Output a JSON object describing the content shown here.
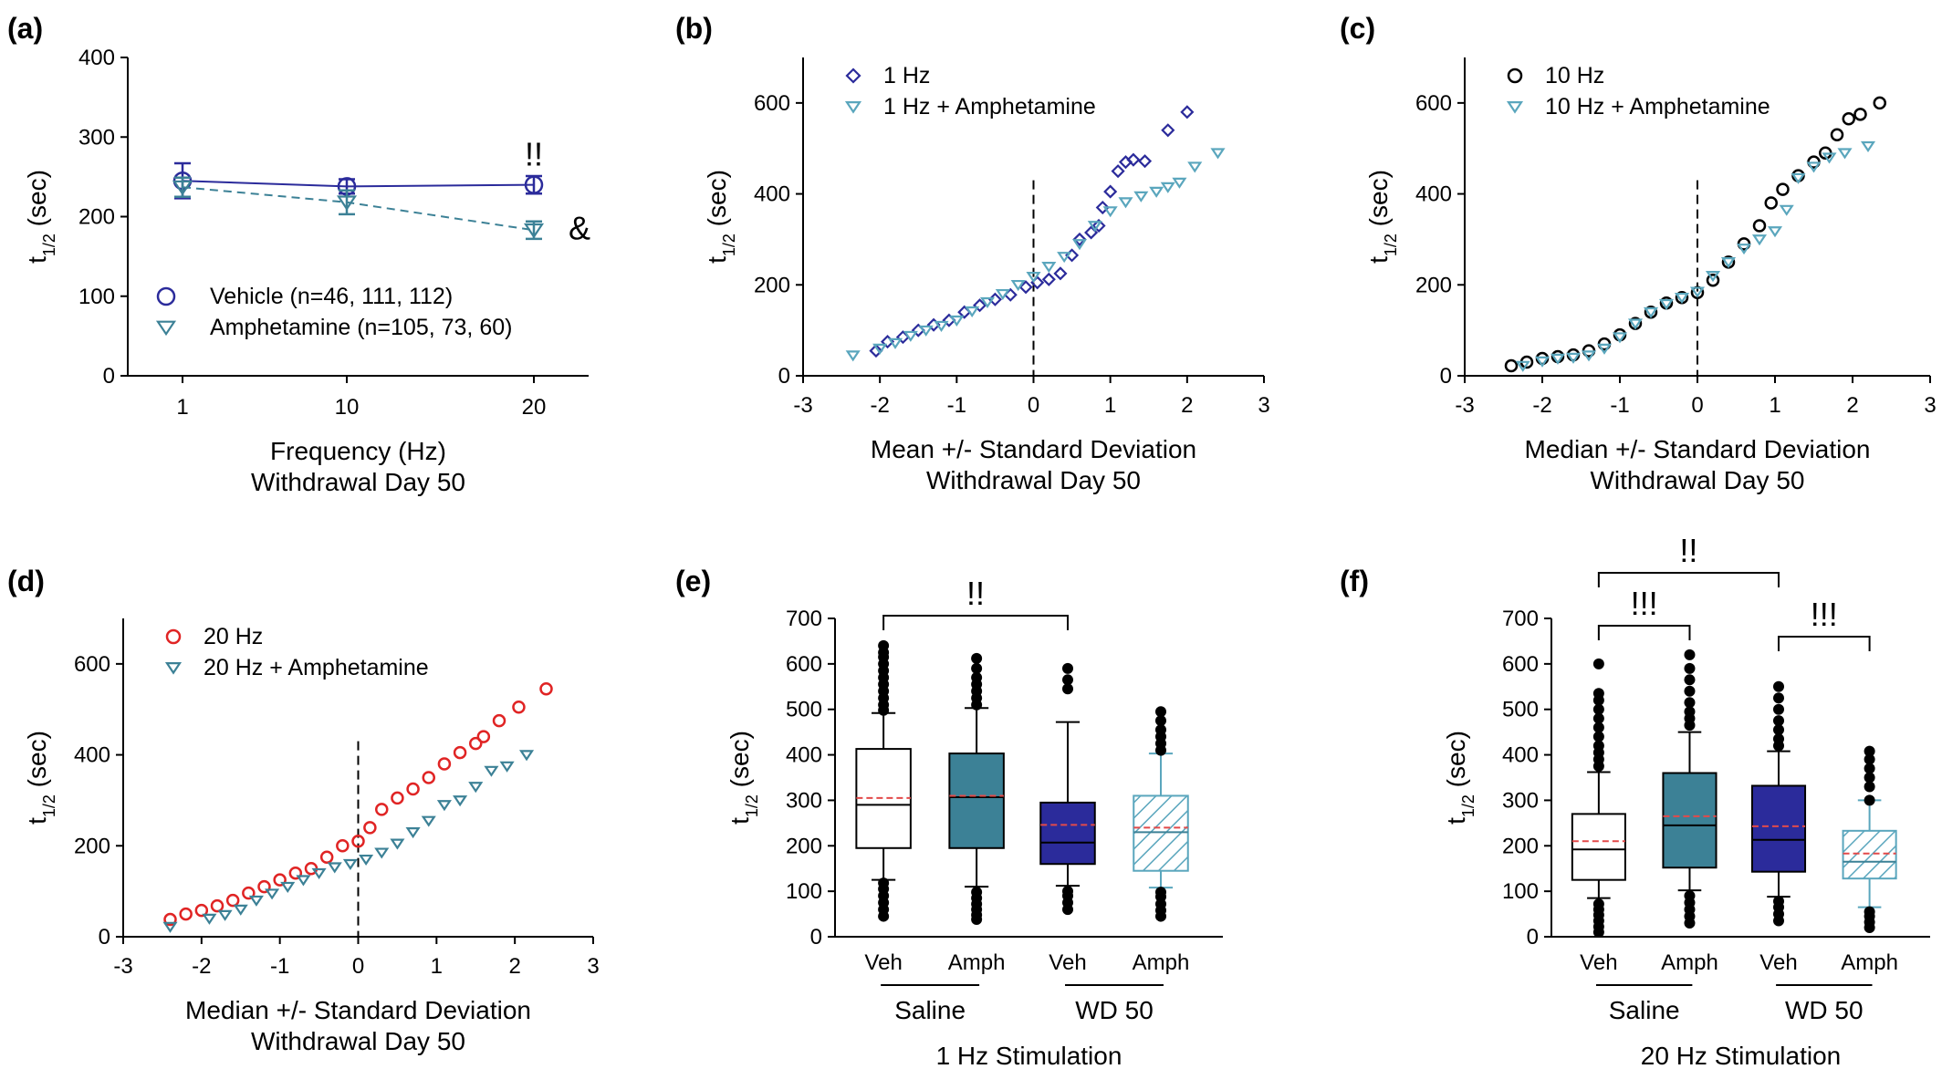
{
  "colors": {
    "vehicle": "#2b2b9b",
    "amph": "#3c8196",
    "amph_light": "#5aa6bd",
    "red": "#e02424",
    "black": "#000000",
    "mean_line": "#e24a4a"
  },
  "chart_data": [
    {
      "id": "a",
      "type": "line",
      "panel_label": "(a)",
      "xlabel": "Frequency (Hz)",
      "xlabel2": "Withdrawal Day 50",
      "ylabel": "t1/2 (sec)",
      "categories": [
        "1",
        "10",
        "20"
      ],
      "ylim": [
        0,
        400
      ],
      "yticks": [
        "0",
        "100",
        "200",
        "300",
        "400"
      ],
      "series": [
        {
          "name": "Vehicle (n=46, 111, 112)",
          "values": [
            245,
            238,
            240
          ],
          "err": [
            22,
            9,
            11
          ],
          "marker": "circle",
          "line": "solid",
          "color": "#2b2b9b"
        },
        {
          "name": "Amphetamine (n=105, 73, 60)",
          "values": [
            237,
            218,
            183
          ],
          "err": [
            12,
            15,
            11
          ],
          "marker": "triangle-down",
          "line": "dashed",
          "color": "#3c8196"
        }
      ],
      "annotations": [
        "!!",
        "&"
      ],
      "legend": "bottom-left"
    },
    {
      "id": "b",
      "type": "scatter",
      "panel_label": "(b)",
      "xlabel": "Mean +/- Standard Deviation",
      "xlabel2": "Withdrawal Day 50",
      "ylabel": "t1/2 (sec)",
      "xlim": [
        -3,
        3
      ],
      "xticks": [
        "-3",
        "-2",
        "-1",
        "0",
        "1",
        "2",
        "3"
      ],
      "ylim": [
        0,
        700
      ],
      "yticks": [
        "0",
        "200",
        "400",
        "600"
      ],
      "series": [
        {
          "name": "1 Hz",
          "marker": "diamond",
          "color": "#2b2b9b",
          "points": [
            [
              -2.05,
              55
            ],
            [
              -1.9,
              75
            ],
            [
              -1.7,
              85
            ],
            [
              -1.5,
              100
            ],
            [
              -1.3,
              112
            ],
            [
              -1.1,
              122
            ],
            [
              -0.9,
              140
            ],
            [
              -0.7,
              155
            ],
            [
              -0.5,
              168
            ],
            [
              -0.3,
              178
            ],
            [
              -0.1,
              195
            ],
            [
              0.05,
              205
            ],
            [
              0.2,
              212
            ],
            [
              0.35,
              225
            ],
            [
              0.5,
              265
            ],
            [
              0.6,
              300
            ],
            [
              0.75,
              315
            ],
            [
              0.85,
              330
            ],
            [
              0.9,
              370
            ],
            [
              1.0,
              405
            ],
            [
              1.1,
              450
            ],
            [
              1.2,
              470
            ],
            [
              1.3,
              475
            ],
            [
              1.45,
              472
            ],
            [
              1.75,
              540
            ],
            [
              2.0,
              580
            ]
          ]
        },
        {
          "name": "1 Hz + Amphetamine",
          "marker": "triangle-down",
          "color": "#5aa6bd",
          "points": [
            [
              -2.35,
              45
            ],
            [
              -2.0,
              60
            ],
            [
              -1.8,
              72
            ],
            [
              -1.6,
              88
            ],
            [
              -1.4,
              100
            ],
            [
              -1.2,
              110
            ],
            [
              -1.0,
              122
            ],
            [
              -0.8,
              142
            ],
            [
              -0.6,
              162
            ],
            [
              -0.4,
              180
            ],
            [
              -0.2,
              200
            ],
            [
              0.0,
              218
            ],
            [
              0.2,
              240
            ],
            [
              0.4,
              262
            ],
            [
              0.6,
              290
            ],
            [
              0.8,
              330
            ],
            [
              1.0,
              362
            ],
            [
              1.2,
              382
            ],
            [
              1.4,
              395
            ],
            [
              1.6,
              405
            ],
            [
              1.75,
              415
            ],
            [
              1.9,
              425
            ],
            [
              2.1,
              460
            ],
            [
              2.4,
              490
            ]
          ]
        }
      ],
      "legend": "top-left"
    },
    {
      "id": "c",
      "type": "scatter",
      "panel_label": "(c)",
      "xlabel": "Median +/- Standard Deviation",
      "xlabel2": "Withdrawal Day 50",
      "ylabel": "t1/2 (sec)",
      "xlim": [
        -3,
        3
      ],
      "xticks": [
        "-3",
        "-2",
        "-1",
        "0",
        "1",
        "2",
        "3"
      ],
      "ylim": [
        0,
        700
      ],
      "yticks": [
        "0",
        "200",
        "400",
        "600"
      ],
      "series": [
        {
          "name": "10 Hz",
          "marker": "circle",
          "color": "#000000",
          "points": [
            [
              -2.4,
              22
            ],
            [
              -2.2,
              30
            ],
            [
              -2.0,
              38
            ],
            [
              -1.8,
              42
            ],
            [
              -1.6,
              46
            ],
            [
              -1.4,
              55
            ],
            [
              -1.2,
              70
            ],
            [
              -1.0,
              90
            ],
            [
              -0.8,
              115
            ],
            [
              -0.6,
              140
            ],
            [
              -0.4,
              160
            ],
            [
              -0.2,
              172
            ],
            [
              0.0,
              183
            ],
            [
              0.2,
              210
            ],
            [
              0.4,
              250
            ],
            [
              0.6,
              290
            ],
            [
              0.8,
              330
            ],
            [
              0.95,
              380
            ],
            [
              1.1,
              410
            ],
            [
              1.3,
              440
            ],
            [
              1.5,
              470
            ],
            [
              1.65,
              490
            ],
            [
              1.8,
              530
            ],
            [
              1.95,
              565
            ],
            [
              2.1,
              575
            ],
            [
              2.35,
              600
            ]
          ]
        },
        {
          "name": "10 Hz + Amphetamine",
          "marker": "triangle-down",
          "color": "#5aa6bd",
          "points": [
            [
              -2.25,
              22
            ],
            [
              -2.0,
              32
            ],
            [
              -1.8,
              38
            ],
            [
              -1.6,
              40
            ],
            [
              -1.4,
              45
            ],
            [
              -1.2,
              60
            ],
            [
              -1.0,
              85
            ],
            [
              -0.8,
              115
            ],
            [
              -0.6,
              140
            ],
            [
              -0.4,
              158
            ],
            [
              -0.2,
              172
            ],
            [
              0.0,
              185
            ],
            [
              0.2,
              220
            ],
            [
              0.4,
              250
            ],
            [
              0.6,
              280
            ],
            [
              0.8,
              300
            ],
            [
              1.0,
              318
            ],
            [
              1.15,
              365
            ],
            [
              1.3,
              435
            ],
            [
              1.5,
              460
            ],
            [
              1.7,
              480
            ],
            [
              1.9,
              490
            ],
            [
              2.2,
              505
            ]
          ]
        }
      ],
      "legend": "top-left"
    },
    {
      "id": "d",
      "type": "scatter",
      "panel_label": "(d)",
      "xlabel": "Median +/- Standard Deviation",
      "xlabel2": "Withdrawal Day 50",
      "ylabel": "t1/2 (sec)",
      "xlim": [
        -3,
        3
      ],
      "xticks": [
        "-3",
        "-2",
        "-1",
        "0",
        "1",
        "2",
        "3"
      ],
      "ylim": [
        0,
        700
      ],
      "yticks": [
        "0",
        "200",
        "400",
        "600"
      ],
      "series": [
        {
          "name": "20 Hz",
          "marker": "circle",
          "color": "#e02424",
          "points": [
            [
              -2.4,
              38
            ],
            [
              -2.2,
              50
            ],
            [
              -2.0,
              58
            ],
            [
              -1.8,
              68
            ],
            [
              -1.6,
              80
            ],
            [
              -1.4,
              96
            ],
            [
              -1.2,
              110
            ],
            [
              -1.0,
              125
            ],
            [
              -0.8,
              140
            ],
            [
              -0.6,
              150
            ],
            [
              -0.4,
              175
            ],
            [
              -0.2,
              200
            ],
            [
              0.0,
              210
            ],
            [
              0.15,
              240
            ],
            [
              0.3,
              280
            ],
            [
              0.5,
              305
            ],
            [
              0.7,
              325
            ],
            [
              0.9,
              350
            ],
            [
              1.1,
              380
            ],
            [
              1.3,
              405
            ],
            [
              1.5,
              425
            ],
            [
              1.6,
              440
            ],
            [
              1.8,
              475
            ],
            [
              2.05,
              505
            ],
            [
              2.4,
              545
            ]
          ]
        },
        {
          "name": "20 Hz + Amphetamine",
          "marker": "triangle-down",
          "color": "#3c8196",
          "points": [
            [
              -2.4,
              22
            ],
            [
              -1.9,
              40
            ],
            [
              -1.7,
              48
            ],
            [
              -1.5,
              60
            ],
            [
              -1.3,
              80
            ],
            [
              -1.1,
              95
            ],
            [
              -0.9,
              110
            ],
            [
              -0.7,
              125
            ],
            [
              -0.5,
              140
            ],
            [
              -0.3,
              153
            ],
            [
              -0.1,
              160
            ],
            [
              0.1,
              170
            ],
            [
              0.3,
              185
            ],
            [
              0.5,
              205
            ],
            [
              0.7,
              230
            ],
            [
              0.9,
              255
            ],
            [
              1.1,
              290
            ],
            [
              1.3,
              300
            ],
            [
              1.5,
              330
            ],
            [
              1.7,
              365
            ],
            [
              1.9,
              375
            ],
            [
              2.15,
              400
            ]
          ]
        }
      ],
      "legend": "top-left"
    },
    {
      "id": "e",
      "type": "box",
      "panel_label": "(e)",
      "ylabel": "t1/2 (sec)",
      "xlabel": "1 Hz Stimulation",
      "ylim": [
        0,
        700
      ],
      "yticks": [
        "0",
        "100",
        "200",
        "300",
        "400",
        "500",
        "600",
        "700"
      ],
      "categories": [
        "Veh",
        "Amph",
        "Veh",
        "Amph"
      ],
      "groups": [
        {
          "label": "Saline",
          "span": [
            0,
            1
          ]
        },
        {
          "label": "WD 50",
          "span": [
            2,
            3
          ]
        }
      ],
      "boxes": [
        {
          "q1": 195,
          "median": 290,
          "q3": 413,
          "mean": 305,
          "whisker_low": 125,
          "whisker_high": 492,
          "fill": "white",
          "outliers": [
            45,
            60,
            75,
            90,
            105,
            118,
            498,
            510,
            525,
            540,
            555,
            570,
            585,
            600,
            615,
            625,
            640
          ]
        },
        {
          "q1": 195,
          "median": 307,
          "q3": 403,
          "mean": 310,
          "whisker_low": 110,
          "whisker_high": 503,
          "fill": "amph",
          "outliers": [
            38,
            48,
            60,
            72,
            85,
            98,
            510,
            525,
            540,
            555,
            570,
            590,
            612
          ]
        },
        {
          "q1": 160,
          "median": 207,
          "q3": 295,
          "mean": 246,
          "whisker_low": 112,
          "whisker_high": 472,
          "fill": "vehicle",
          "outliers": [
            60,
            75,
            90,
            100,
            545,
            565,
            590
          ]
        },
        {
          "q1": 145,
          "median": 230,
          "q3": 310,
          "mean": 240,
          "whisker_low": 108,
          "whisker_high": 403,
          "fill": "hatch",
          "outliers": [
            45,
            58,
            72,
            88,
            98,
            410,
            425,
            440,
            455,
            475,
            495
          ]
        }
      ],
      "brackets": [
        {
          "from": 0,
          "to": 2,
          "label": "!!"
        }
      ]
    },
    {
      "id": "f",
      "type": "box",
      "panel_label": "(f)",
      "ylabel": "t1/2 (sec)",
      "xlabel": "20 Hz Stimulation",
      "ylim": [
        0,
        700
      ],
      "yticks": [
        "0",
        "100",
        "200",
        "300",
        "400",
        "500",
        "600",
        "700"
      ],
      "categories": [
        "Veh",
        "Amph",
        "Veh",
        "Amph"
      ],
      "groups": [
        {
          "label": "Saline",
          "span": [
            0,
            1
          ]
        },
        {
          "label": "WD 50",
          "span": [
            2,
            3
          ]
        }
      ],
      "boxes": [
        {
          "q1": 125,
          "median": 192,
          "q3": 270,
          "mean": 210,
          "whisker_low": 85,
          "whisker_high": 362,
          "fill": "white",
          "outliers": [
            10,
            22,
            35,
            48,
            60,
            72,
            375,
            390,
            405,
            420,
            440,
            460,
            480,
            500,
            520,
            535,
            600
          ]
        },
        {
          "q1": 152,
          "median": 245,
          "q3": 360,
          "mean": 265,
          "whisker_low": 102,
          "whisker_high": 450,
          "fill": "amph",
          "outliers": [
            30,
            45,
            60,
            75,
            90,
            465,
            480,
            495,
            515,
            540,
            565,
            590,
            620
          ]
        },
        {
          "q1": 143,
          "median": 213,
          "q3": 332,
          "mean": 243,
          "whisker_low": 88,
          "whisker_high": 408,
          "fill": "vehicle",
          "outliers": [
            35,
            50,
            65,
            78,
            420,
            435,
            455,
            475,
            500,
            525,
            550
          ]
        },
        {
          "q1": 128,
          "median": 165,
          "q3": 233,
          "mean": 183,
          "whisker_low": 65,
          "whisker_high": 300,
          "fill": "hatch",
          "outliers": [
            20,
            32,
            45,
            55,
            300,
            330,
            350,
            370,
            390,
            408
          ]
        }
      ],
      "brackets": [
        {
          "from": 0,
          "to": 1,
          "label": "!!!"
        },
        {
          "from": 2,
          "to": 3,
          "label": "!!!"
        },
        {
          "from": 0,
          "to": 2,
          "label": "!!",
          "level": 2
        }
      ]
    }
  ]
}
